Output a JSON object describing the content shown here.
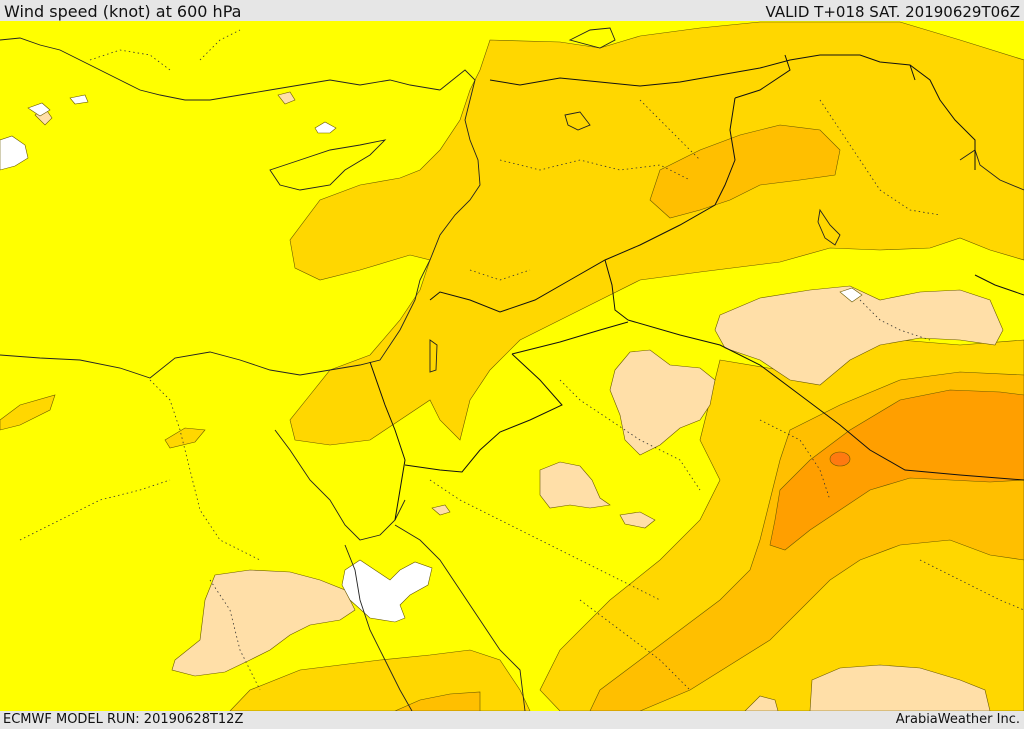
{
  "header": {
    "title": "Wind speed (knot) at 600 hPa",
    "valid": "VALID T+018 SAT. 20190629T06Z"
  },
  "footer": {
    "model_run": "ECMWF MODEL RUN: 20190628T12Z",
    "credit": "ArabiaWeather Inc."
  },
  "colors": {
    "background": "#ffff00",
    "band_light": "#ffd700",
    "band_mid": "#ffbf00",
    "band_strong": "#ff9f00",
    "band_core": "#ff7a10",
    "band_calm": "#ffdfa8",
    "band_zero": "#ffffff",
    "frame": "#e6e6e6"
  },
  "icons": {
    "coastline": "coastline-lines",
    "borders": "country-border-lines",
    "provinces": "province-dotted-lines"
  }
}
